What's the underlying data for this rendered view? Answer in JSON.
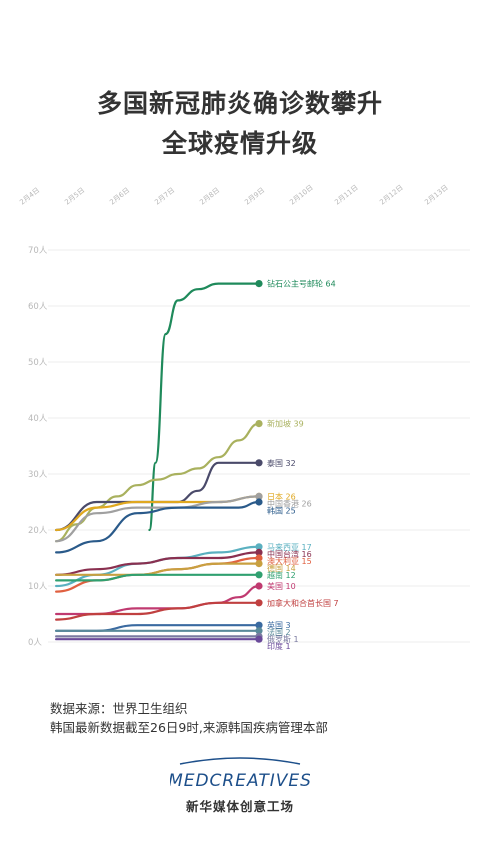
{
  "title_line1": "多国新冠肺炎确诊数攀升",
  "title_line2": "全球疫情升级",
  "source_line1": "数据来源：世界卫生组织",
  "source_line2": "韩国最新数据截至26日9时,来源韩国疾病管理本部",
  "logo_word": "MEDCREATIVES",
  "logo_caption": "新华媒体创意工场",
  "colors": {
    "grid": "#ececec",
    "axis_text": "#b8b8b8"
  },
  "chart_data": {
    "type": "line",
    "x_ticks": [
      "2月4日",
      "2月5日",
      "2月6日",
      "2月7日",
      "2月8日",
      "2月9日",
      "2月10日",
      "2月11日",
      "2月12日",
      "2月13日"
    ],
    "y_ticks": [
      "0人",
      "10人",
      "20人",
      "30人",
      "40人",
      "50人",
      "60人",
      "70人"
    ],
    "ylim": [
      0,
      70
    ],
    "x_range": [
      -0.2,
      10.2
    ],
    "grid": true,
    "legend": "inline-end",
    "series": [
      {
        "name": "钻石公主号邮轮",
        "label": "钻石公主号邮轮 64",
        "color": "#1f8a5b",
        "x": [
          2.3,
          2.45,
          2.7,
          3.0,
          3.5,
          4.0,
          5.0
        ],
        "y": [
          20,
          32,
          55,
          61,
          63,
          64,
          64
        ]
      },
      {
        "name": "新加坡",
        "label": "新加坡 39",
        "color": "#a9b15e",
        "x": [
          0,
          0.5,
          1,
          1.5,
          2,
          2.5,
          3,
          3.5,
          4,
          4.5,
          5
        ],
        "y": [
          18,
          21,
          24,
          26,
          28,
          29,
          30,
          31,
          33,
          36,
          39
        ]
      },
      {
        "name": "泰国",
        "label": "泰国 32",
        "color": "#4a4a6a",
        "x": [
          0,
          1,
          2,
          3,
          3.5,
          4,
          4.5,
          5
        ],
        "y": [
          20,
          25,
          25,
          25,
          27,
          32,
          32,
          32
        ]
      },
      {
        "name": "日本",
        "label": "日本 26",
        "color": "#e0a820",
        "x": [
          0,
          1,
          2,
          3,
          4,
          5
        ],
        "y": [
          20,
          24,
          25,
          25,
          25,
          26
        ]
      },
      {
        "name": "中国香港",
        "label": "中国香港 26",
        "color": "#a0a0a0",
        "x": [
          0,
          1,
          2,
          3,
          4,
          5
        ],
        "y": [
          18,
          23,
          24,
          24,
          25,
          26
        ]
      },
      {
        "name": "韩国",
        "label": "韩国 25",
        "color": "#2a5a8a",
        "x": [
          0,
          1,
          2,
          3,
          4,
          4.5,
          5
        ],
        "y": [
          16,
          18,
          23,
          24,
          24,
          24,
          25
        ]
      },
      {
        "name": "马来西亚",
        "label": "马来西亚 17",
        "color": "#5ab0c0",
        "x": [
          0,
          1,
          2,
          3,
          4,
          5
        ],
        "y": [
          10,
          12,
          14,
          15,
          16,
          17
        ]
      },
      {
        "name": "中国台湾",
        "label": "中国台湾 16",
        "color": "#8a3050",
        "x": [
          0,
          1,
          2,
          3,
          4,
          5
        ],
        "y": [
          12,
          13,
          14,
          15,
          15,
          16
        ]
      },
      {
        "name": "澳大利亚",
        "label": "澳大利亚 15",
        "color": "#e06040",
        "x": [
          0,
          1,
          2,
          3,
          4,
          5
        ],
        "y": [
          9,
          11,
          12,
          13,
          14,
          15
        ]
      },
      {
        "name": "德国",
        "label": "德国 14",
        "color": "#c8a040",
        "x": [
          0,
          1,
          2,
          3,
          4,
          5
        ],
        "y": [
          12,
          12,
          12,
          13,
          14,
          14
        ]
      },
      {
        "name": "越南",
        "label": "越南 12",
        "color": "#30a070",
        "x": [
          0,
          1,
          2,
          3,
          4,
          5
        ],
        "y": [
          11,
          11,
          12,
          12,
          12,
          12
        ]
      },
      {
        "name": "美国",
        "label": "美国 10",
        "color": "#c03a70",
        "x": [
          0,
          1,
          2,
          3,
          4,
          4.5,
          5
        ],
        "y": [
          5,
          5,
          6,
          6,
          7,
          8,
          10
        ]
      },
      {
        "name": "加拿大",
        "label": "加拿大和合首长国 7",
        "color": "#c04040",
        "x": [
          0,
          1,
          2,
          3,
          4,
          5
        ],
        "y": [
          4,
          5,
          5,
          6,
          7,
          7
        ]
      },
      {
        "name": "英国",
        "label": "英国 3",
        "color": "#3a6aa0",
        "x": [
          0,
          1,
          2,
          3,
          4,
          5
        ],
        "y": [
          2,
          2,
          3,
          3,
          3,
          3
        ]
      },
      {
        "name": "法国",
        "label": "法国 2",
        "color": "#5a8a9a",
        "x": [
          0,
          1,
          2,
          3,
          4,
          5
        ],
        "y": [
          2,
          2,
          2,
          2,
          2,
          2
        ]
      },
      {
        "name": "俄罗斯",
        "label": "俄罗斯 1",
        "color": "#7a7aa0",
        "x": [
          0,
          1,
          2,
          3,
          4,
          5
        ],
        "y": [
          1,
          1,
          1,
          1,
          1,
          1
        ]
      },
      {
        "name": "印度",
        "label": "印度 1",
        "color": "#6a4a9a",
        "x": [
          0,
          1,
          2,
          3,
          4,
          5
        ],
        "y": [
          0.5,
          0.5,
          0.5,
          0.5,
          0.5,
          0.5
        ]
      }
    ]
  }
}
